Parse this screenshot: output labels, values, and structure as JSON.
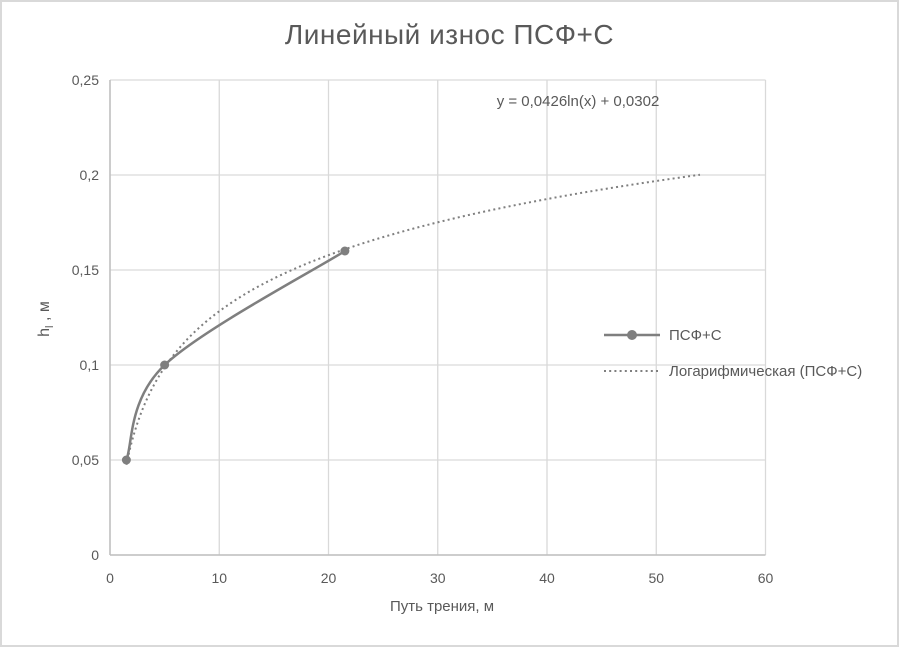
{
  "chart_data": {
    "type": "line",
    "title": "Линейный износ ПСФ+С",
    "xlabel": "Путь трения, м",
    "ylabel": {
      "base": "h",
      "sub": "l",
      "rest": " , м"
    },
    "xlim": [
      0,
      60
    ],
    "ylim": [
      0,
      0.25
    ],
    "xticks": {
      "values": [
        0,
        10,
        20,
        30,
        40,
        50,
        60
      ],
      "labels": [
        "0",
        "10",
        "20",
        "30",
        "40",
        "50",
        "60"
      ]
    },
    "yticks": {
      "values": [
        0,
        0.05,
        0.1,
        0.15,
        0.2,
        0.25
      ],
      "labels": [
        "0",
        "0,05",
        "0,1",
        "0,15",
        "0,2",
        "0,25"
      ]
    },
    "grid": true,
    "legend_position": "inside-right-middle",
    "series": [
      {
        "name": "ПСФ+С",
        "type": "smooth-line-with-markers",
        "marker": "circle",
        "color": "#7f7f7f",
        "points": [
          [
            1.5,
            0.05
          ],
          [
            5,
            0.1
          ],
          [
            21.5,
            0.16
          ]
        ]
      },
      {
        "name": "Логарифмическая (ПСФ+С)",
        "type": "logarithmic-trendline",
        "style": "dotted",
        "color": "#7f7f7f",
        "equation": "y = 0,0426ln(x) + 0,0302",
        "coefficients": {
          "a": 0.0426,
          "b": 0.0302
        },
        "x_range": [
          1.5,
          54
        ]
      }
    ],
    "colors": {
      "text": "#595959",
      "gridline": "#d9d9d9",
      "axis_line": "#bfbfbf",
      "series": "#7f7f7f",
      "frame_border": "#d9d9d9",
      "background": "#ffffff"
    }
  }
}
